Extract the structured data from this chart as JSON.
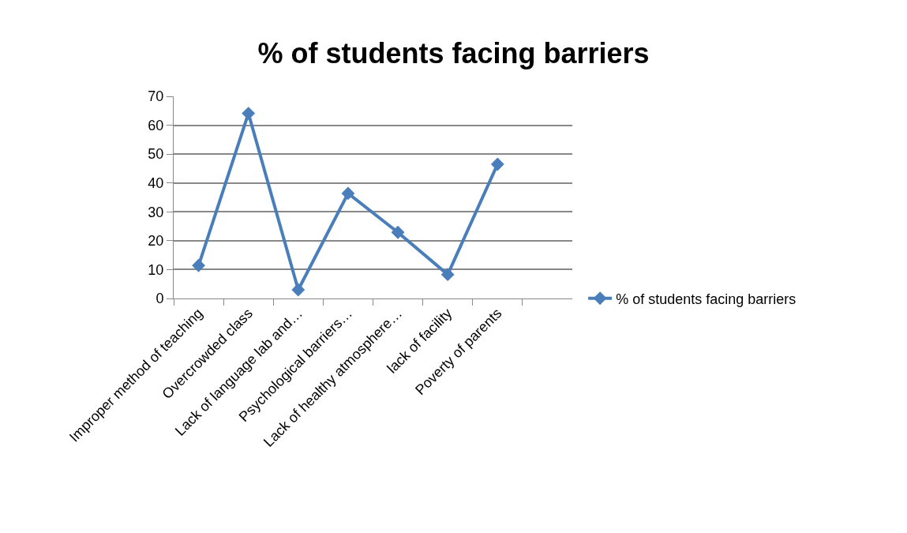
{
  "chart_data": {
    "type": "line",
    "title": "% of students facing barriers",
    "categories": [
      "Improper method of teaching",
      "Overcrowded class",
      "Lack of language lab and…",
      "Psychological barriers…",
      "Lack of healthy atmosphere…",
      "lack of facility",
      "Poverty of parents",
      null
    ],
    "series": [
      {
        "name": "% of students facing barriers",
        "color": "#4a7ebb",
        "values": [
          11.4,
          64.1,
          3.0,
          36.4,
          22.9,
          8.3,
          46.5,
          null
        ]
      }
    ],
    "ylim": [
      0,
      70
    ],
    "yticks": [
      0,
      10,
      20,
      30,
      40,
      50,
      60,
      70
    ],
    "grid": "y",
    "legend": "right",
    "marker": "diamond",
    "line_style": "solid"
  }
}
